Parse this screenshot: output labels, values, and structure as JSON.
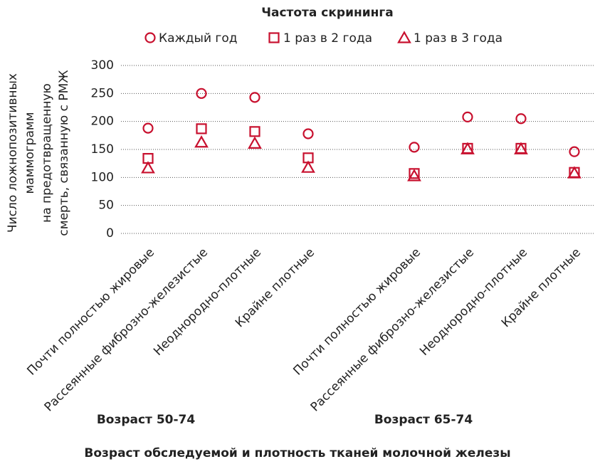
{
  "chart_data": {
    "type": "scatter",
    "legend_title": "Частота скрининга",
    "title": "Возраст обследуемой и плотность тканей молочной железы",
    "ylabel": [
      "Число ложнопозитивных",
      "маммограмм",
      "на предотвращенную",
      "смерть, связанную с РМЖ"
    ],
    "groups": [
      "Возраст 50-74",
      "Возраст 65-74"
    ],
    "categories": [
      "Почти полностью жировые",
      "Рассеянные фиброзно-железистые",
      "Неоднородно-плотные",
      "Крайне плотные",
      "Почти полностью жировые",
      "Рассеянные фиброзно-железистые",
      "Неоднородно-плотные",
      "Крайне плотные"
    ],
    "series": [
      {
        "name": "Каждый год",
        "marker": "circle",
        "color": "#c8102e",
        "values": [
          188,
          250,
          243,
          178,
          154,
          208,
          205,
          146
        ]
      },
      {
        "name": "1 раз в 2 года",
        "marker": "square",
        "color": "#c8102e",
        "values": [
          134,
          187,
          182,
          135,
          107,
          152,
          152,
          109
        ]
      },
      {
        "name": "1 раз в 3 года",
        "marker": "triangle",
        "color": "#c8102e",
        "values": [
          117,
          163,
          161,
          118,
          103,
          151,
          151,
          108
        ]
      }
    ],
    "ylim": [
      0,
      300
    ],
    "yticks": [
      0,
      50,
      100,
      150,
      200,
      250,
      300
    ],
    "grid": true
  }
}
